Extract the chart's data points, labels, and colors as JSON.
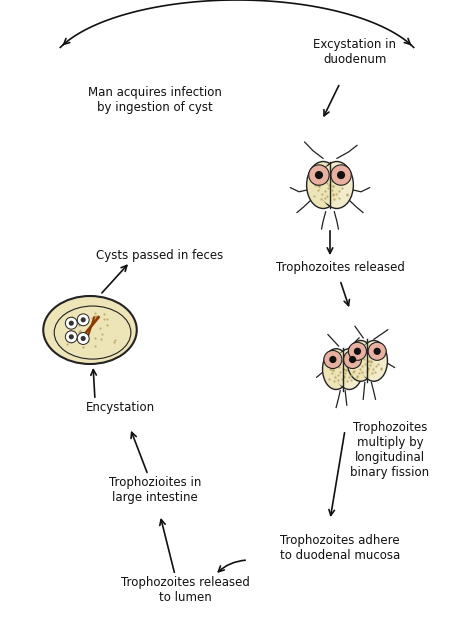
{
  "bg_color": "#ffffff",
  "labels": {
    "excystation": "Excystation in\nduodenum",
    "trophozoites_released": "Trophozoites released",
    "trophozoites_multiply": "Trophozoites\nmultiply by\nlongitudinal\nbinary fission",
    "trophozoites_adhere": "Trophozoites adhere\nto duodenal mucosa",
    "trophozoites_lumen": "Trophozoites released\nto lumen",
    "trophozoites_large": "Trophozioites in\nlarge intestine",
    "encystation": "Encystation",
    "cysts_passed": "Cysts passed in feces",
    "man_acquires": "Man acquires infection\nby ingestion of cyst"
  },
  "text_color": "#111111",
  "outline_color": "#222222",
  "body_fill": "#ede5b8",
  "body_fill2": "#f2eccc",
  "eye_outer_color": "#e8b0a0",
  "cyst_fill": "#ede5b8",
  "axostyle_color": "#8B3A00",
  "stipple_color": "#b8a060"
}
